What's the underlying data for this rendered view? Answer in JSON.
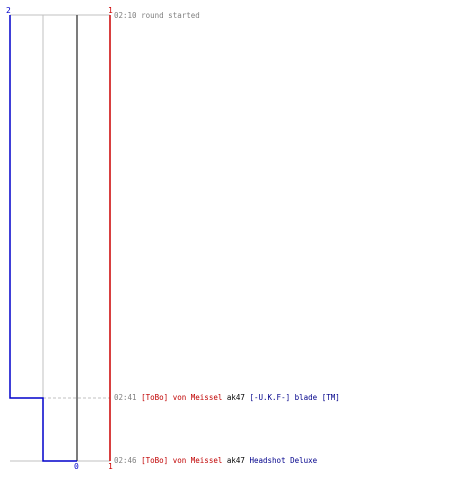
{
  "scores": {
    "blue_top": "2",
    "red_top": "1",
    "red_bottom": "1",
    "center_bottom": "0"
  },
  "events": [
    {
      "time": "02:10",
      "message": "round started"
    },
    {
      "time": "02:41",
      "attacker": "[ToBo] von Meissel",
      "weapon": "ak47",
      "victim": "[-U.K.F-] blade [TM]"
    },
    {
      "time": "02:46",
      "attacker": "[ToBo] von Meissel",
      "weapon": "ak47",
      "victim": "Headshot Deluxe"
    }
  ],
  "colors": {
    "blue_team": "#0000cc",
    "red_team": "#cc0000",
    "attacker_text": "#c00000",
    "victim_text": "#00008b",
    "grid": "#c0c0c0",
    "center_line": "#505050",
    "time_text": "#808080"
  }
}
